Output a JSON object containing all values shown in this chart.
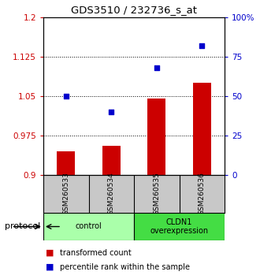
{
  "title": "GDS3510 / 232736_s_at",
  "samples": [
    "GSM260533",
    "GSM260534",
    "GSM260535",
    "GSM260536"
  ],
  "transformed_counts": [
    0.945,
    0.955,
    1.045,
    1.075
  ],
  "percentile_ranks": [
    50,
    40,
    68,
    82
  ],
  "ylim_left": [
    0.9,
    1.2
  ],
  "ylim_right": [
    0,
    100
  ],
  "yticks_left": [
    0.9,
    0.975,
    1.05,
    1.125,
    1.2
  ],
  "ytick_labels_left": [
    "0.9",
    "0.975",
    "1.05",
    "1.125",
    "1.2"
  ],
  "yticks_right": [
    0,
    25,
    50,
    75,
    100
  ],
  "ytick_labels_right": [
    "0",
    "25",
    "50",
    "75",
    "100%"
  ],
  "bar_color": "#cc0000",
  "dot_color": "#0000cc",
  "groups": [
    {
      "label": "control",
      "color": "#aaffaa"
    },
    {
      "label": "CLDN1\noverexpression",
      "color": "#44dd44"
    }
  ],
  "protocol_label": "protocol",
  "legend_bar_label": "transformed count",
  "legend_dot_label": "percentile rank within the sample",
  "grid_dotted_values": [
    0.975,
    1.05,
    1.125
  ],
  "background_color": "#ffffff",
  "sample_box_color": "#c8c8c8"
}
